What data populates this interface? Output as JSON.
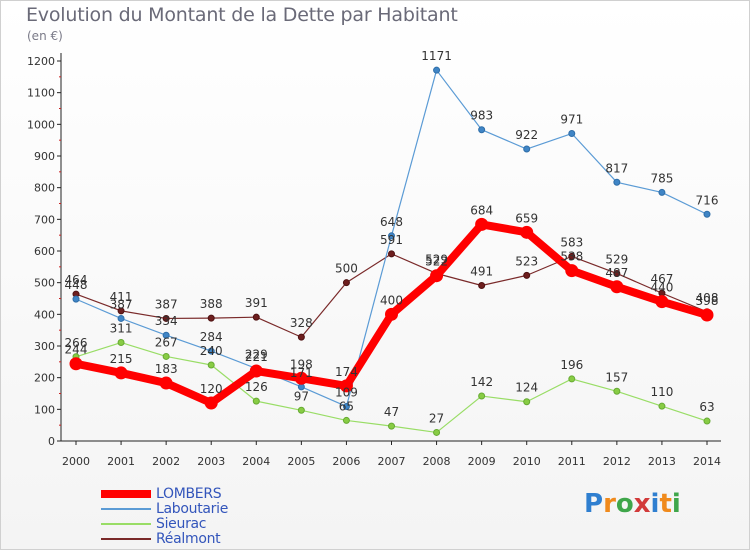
{
  "header": {
    "title": "Evolution du Montant de la Dette par Habitant",
    "unit": "(en €)"
  },
  "logo": {
    "text": "Proxiti",
    "colors": [
      "#2f7fd0",
      "#f08a1c",
      "#3fa64a",
      "#d23a3a",
      "#2f7fd0",
      "#f08a1c",
      "#3fa64a"
    ]
  },
  "chart_data": {
    "type": "line",
    "title": "Evolution du Montant de la Dette par Habitant",
    "ylabel": "(en €)",
    "xlabel": "",
    "x": [
      2000,
      2001,
      2002,
      2003,
      2004,
      2005,
      2006,
      2007,
      2008,
      2009,
      2010,
      2011,
      2012,
      2013,
      2014
    ],
    "ylim": [
      0,
      1200
    ],
    "yticks": [
      0,
      100,
      200,
      300,
      400,
      500,
      600,
      700,
      800,
      900,
      1000,
      1100,
      1200
    ],
    "grid": false,
    "legend_position": "bottom-left",
    "series": [
      {
        "name": "LOMBERS",
        "color": "#ff0000",
        "values": [
          244,
          215,
          183,
          120,
          221,
          198,
          174,
          400,
          522,
          684,
          659,
          538,
          487,
          440,
          398
        ]
      },
      {
        "name": "Laboutarie",
        "color": "#5b9bd5",
        "values": [
          448,
          387,
          334,
          284,
          229,
          171,
          109,
          648,
          1171,
          983,
          922,
          971,
          817,
          785,
          716
        ]
      },
      {
        "name": "Sieurac",
        "color": "#99dd66",
        "values": [
          266,
          311,
          267,
          240,
          126,
          97,
          65,
          47,
          27,
          142,
          124,
          196,
          157,
          110,
          63
        ]
      },
      {
        "name": "Réalmont",
        "color": "#7a2a2a",
        "values": [
          464,
          411,
          387,
          388,
          391,
          328,
          500,
          591,
          529,
          491,
          523,
          583,
          529,
          467,
          408
        ]
      }
    ]
  }
}
